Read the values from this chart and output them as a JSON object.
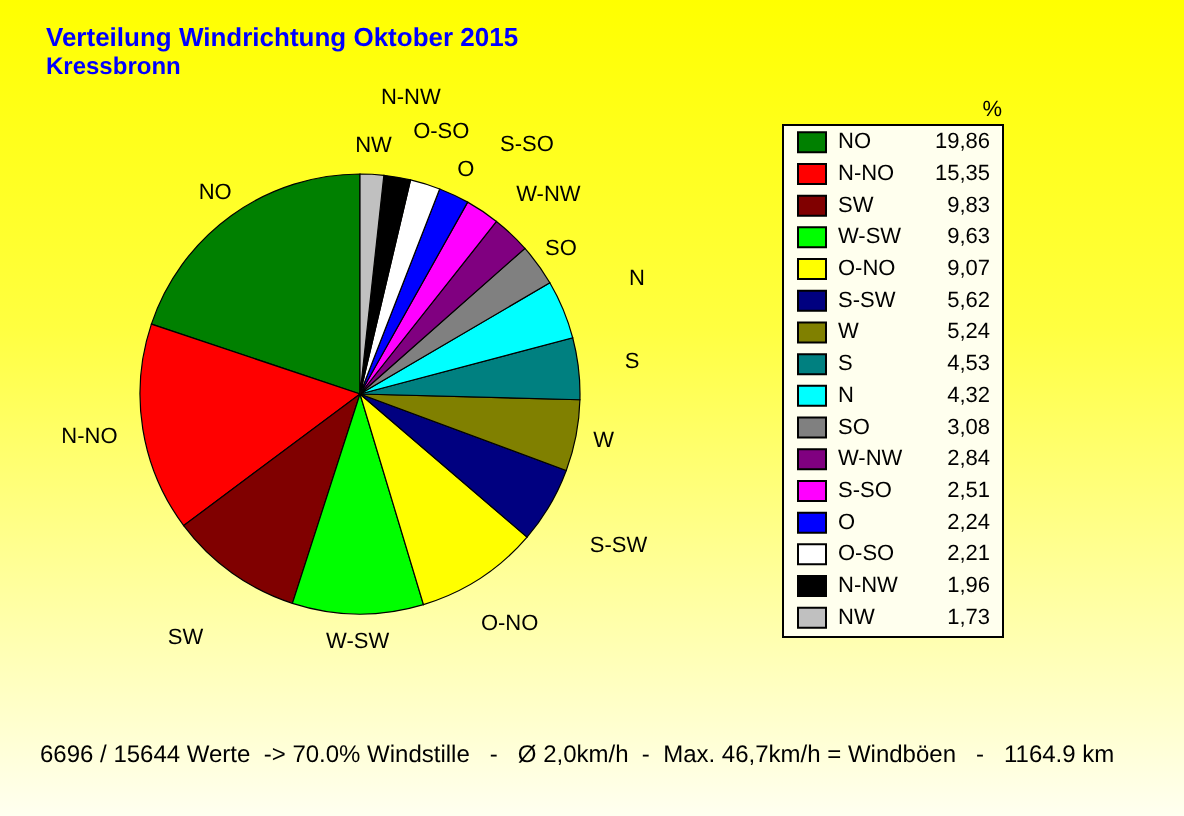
{
  "chart_data": {
    "type": "pie",
    "title": "Verteilung Windrichtung    Oktober 2015",
    "subtitle": "Kressbronn",
    "legend_title": "%",
    "legend": "right",
    "categories": [
      "NO",
      "N-NO",
      "SW",
      "W-SW",
      "O-NO",
      "S-SW",
      "W",
      "S",
      "N",
      "SO",
      "W-NW",
      "S-SO",
      "O",
      "O-SO",
      "N-NW",
      "NW"
    ],
    "values": [
      19.86,
      15.35,
      9.83,
      9.63,
      9.07,
      5.62,
      5.24,
      4.53,
      4.32,
      3.08,
      2.84,
      2.51,
      2.24,
      2.21,
      1.96,
      1.73
    ],
    "value_labels": [
      "19,86",
      "15,35",
      "9,83",
      "9,63",
      "9,07",
      "5,62",
      "5,24",
      "4,53",
      "4,32",
      "3,08",
      "2,84",
      "2,51",
      "2,24",
      "2,21",
      "1,96",
      "1,73"
    ],
    "colors": [
      "#008000",
      "#ff0000",
      "#800000",
      "#00ff00",
      "#ffff00",
      "#000080",
      "#808000",
      "#008080",
      "#00ffff",
      "#808080",
      "#800080",
      "#ff00ff",
      "#0000ff",
      "#ffffff",
      "#000000",
      "#c0c0c0"
    ],
    "annotations": [
      "6696 / 15644 Werte  -> 70.0% Windstille   -   Ø 2,0km/h  -  Max. 46,7km/h = Windböen   -   1164.9 km"
    ]
  }
}
